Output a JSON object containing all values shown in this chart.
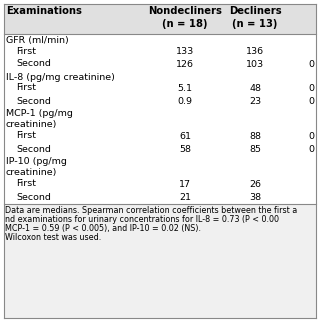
{
  "col0_header": "Examinations",
  "col1_header": "Nondecliners\n(n = 18)",
  "col2_header": "Decliners\n(n = 13)",
  "rows": [
    {
      "label": "GFR (ml/min)",
      "indent": false,
      "nd": "",
      "d": "",
      "p": ""
    },
    {
      "label": "First",
      "indent": true,
      "nd": "133",
      "d": "136",
      "p": ""
    },
    {
      "label": "Second",
      "indent": true,
      "nd": "126",
      "d": "103",
      "p": "0"
    },
    {
      "label": "IL-8 (pg/mg creatinine)",
      "indent": false,
      "nd": "",
      "d": "",
      "p": ""
    },
    {
      "label": "First",
      "indent": true,
      "nd": "5.1",
      "d": "48",
      "p": "0"
    },
    {
      "label": "Second",
      "indent": true,
      "nd": "0.9",
      "d": "23",
      "p": "0"
    },
    {
      "label": "MCP-1 (pg/mg",
      "indent": false,
      "nd": "",
      "d": "",
      "p": ""
    },
    {
      "label": "creatinine)",
      "indent": false,
      "nd": "",
      "d": "",
      "p": ""
    },
    {
      "label": "First",
      "indent": true,
      "nd": "61",
      "d": "88",
      "p": "0"
    },
    {
      "label": "Second",
      "indent": true,
      "nd": "58",
      "d": "85",
      "p": "0"
    },
    {
      "label": "IP-10 (pg/mg",
      "indent": false,
      "nd": "",
      "d": "",
      "p": ""
    },
    {
      "label": "creatinine)",
      "indent": false,
      "nd": "",
      "d": "",
      "p": ""
    },
    {
      "label": "First",
      "indent": true,
      "nd": "17",
      "d": "26",
      "p": ""
    },
    {
      "label": "Second",
      "indent": true,
      "nd": "21",
      "d": "38",
      "p": ""
    }
  ],
  "footnote_lines": [
    "Data are medians. Spearman correlation coefficients between the first a",
    "nd examinations for urinary concentrations for IL-8 = 0.73 (P < 0.00",
    "MCP-1 = 0.59 (P < 0.005), and IP-10 = 0.02 (NS).",
    "Wilcoxon test was used."
  ],
  "bg_header": "#e0e0e0",
  "bg_body": "#ffffff",
  "bg_footnote": "#f0f0f0",
  "line_color": "#888888",
  "font_size": 6.8,
  "header_font_size": 7.2,
  "footnote_font_size": 5.8
}
